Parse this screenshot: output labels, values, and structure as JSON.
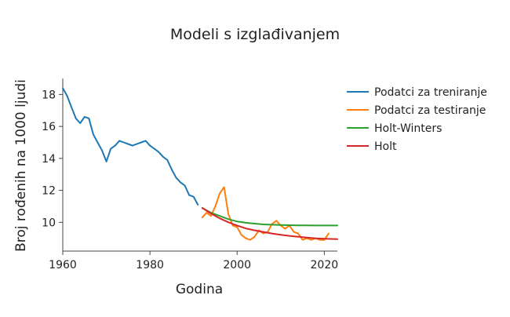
{
  "chart_data": {
    "type": "line",
    "title": "Modeli s izglađivanjem",
    "xlabel": "Godina",
    "ylabel": "Broj rođenih na 1000 ljudi",
    "xlim": [
      1960,
      2023
    ],
    "ylim": [
      8.2,
      19.0
    ],
    "x_ticks": [
      1960,
      1980,
      2000,
      2020
    ],
    "y_ticks": [
      10,
      12,
      14,
      16,
      18
    ],
    "grid": false,
    "legend_position": "right",
    "series": [
      {
        "name": "Podatci za treniranje",
        "color": "#1f77b4",
        "x": [
          1960,
          1961,
          1962,
          1963,
          1964,
          1965,
          1966,
          1967,
          1968,
          1969,
          1970,
          1971,
          1972,
          1973,
          1974,
          1975,
          1976,
          1977,
          1978,
          1979,
          1980,
          1981,
          1982,
          1983,
          1984,
          1985,
          1986,
          1987,
          1988,
          1989,
          1990,
          1991
        ],
        "y": [
          18.4,
          17.9,
          17.2,
          16.5,
          16.2,
          16.6,
          16.5,
          15.5,
          15.0,
          14.5,
          13.8,
          14.6,
          14.8,
          15.1,
          15.0,
          14.9,
          14.8,
          14.9,
          15.0,
          15.1,
          14.8,
          14.6,
          14.4,
          14.1,
          13.9,
          13.3,
          12.8,
          12.5,
          12.3,
          11.7,
          11.6,
          11.1
        ]
      },
      {
        "name": "Podatci za testiranje",
        "color": "#ff7f0e",
        "x": [
          1992,
          1993,
          1994,
          1995,
          1996,
          1997,
          1998,
          1999,
          2000,
          2001,
          2002,
          2003,
          2004,
          2005,
          2006,
          2007,
          2008,
          2009,
          2010,
          2011,
          2012,
          2013,
          2014,
          2015,
          2016,
          2017,
          2018,
          2019,
          2020,
          2021
        ],
        "y": [
          10.3,
          10.6,
          10.4,
          11.0,
          11.8,
          12.2,
          10.5,
          9.8,
          9.7,
          9.2,
          9.0,
          8.9,
          9.1,
          9.5,
          9.3,
          9.4,
          9.9,
          10.1,
          9.8,
          9.6,
          9.8,
          9.4,
          9.3,
          8.9,
          9.0,
          8.9,
          9.0,
          8.9,
          8.9,
          9.3
        ]
      },
      {
        "name": "Holt-Winters",
        "color": "#2ca02c",
        "x": [
          1992,
          1994,
          1996,
          1998,
          2000,
          2002,
          2004,
          2006,
          2008,
          2010,
          2012,
          2014,
          2016,
          2018,
          2020,
          2023
        ],
        "y": [
          10.9,
          10.6,
          10.4,
          10.2,
          10.05,
          9.97,
          9.92,
          9.87,
          9.85,
          9.83,
          9.82,
          9.81,
          9.81,
          9.8,
          9.8,
          9.8
        ]
      },
      {
        "name": "Holt",
        "color": "#d62728",
        "x": [
          1992,
          1994,
          1996,
          1998,
          2000,
          2002,
          2004,
          2006,
          2008,
          2010,
          2012,
          2014,
          2016,
          2018,
          2020,
          2023
        ],
        "y": [
          10.9,
          10.55,
          10.25,
          10.0,
          9.8,
          9.62,
          9.5,
          9.4,
          9.3,
          9.22,
          9.15,
          9.1,
          9.05,
          9.0,
          8.97,
          8.95
        ]
      }
    ]
  }
}
